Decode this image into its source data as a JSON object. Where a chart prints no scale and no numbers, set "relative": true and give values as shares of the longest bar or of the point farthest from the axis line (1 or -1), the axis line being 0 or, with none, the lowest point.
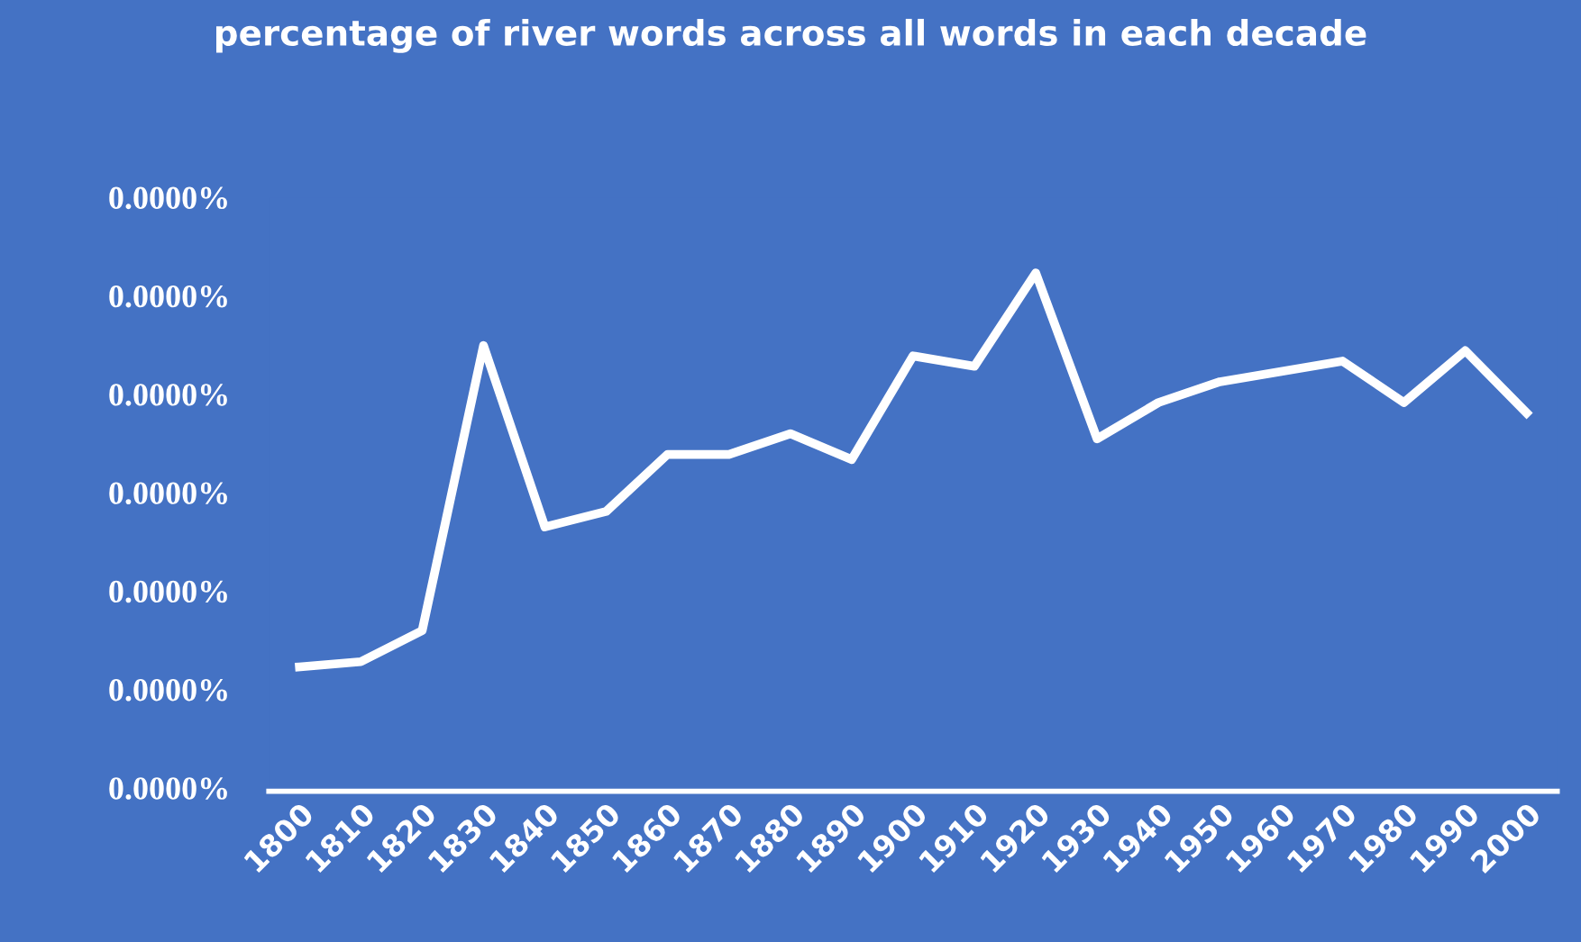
{
  "chart_data": {
    "type": "line",
    "title": "percentage of river words across all words in each decade",
    "categories": [
      "1800",
      "1810",
      "1820",
      "1830",
      "1840",
      "1850",
      "1860",
      "1870",
      "1880",
      "1890",
      "1900",
      "1910",
      "1920",
      "1930",
      "1940",
      "1950",
      "1960",
      "1970",
      "1980",
      "1990",
      "2000"
    ],
    "relative": true,
    "values": [
      0.24,
      0.25,
      0.31,
      0.86,
      0.51,
      0.54,
      0.65,
      0.65,
      0.69,
      0.64,
      0.84,
      0.82,
      1.0,
      0.68,
      0.75,
      0.79,
      0.81,
      0.83,
      0.75,
      0.85,
      0.73
    ],
    "color": "#ffffff",
    "annotations": [
      "0.0000%",
      "0.0000%",
      "0.0000%",
      "0.0000%",
      "0.0000%",
      "0.0000%",
      "0.0000%"
    ],
    "grid": false,
    "legend": false,
    "marker": "none",
    "line_style": "solid"
  }
}
